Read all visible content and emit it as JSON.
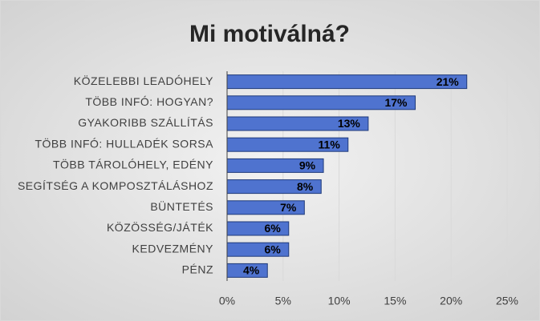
{
  "chart_data": {
    "type": "hbar",
    "title": "Mi motiválná?",
    "categories": [
      "KÖZELEBBI LEADÓHELY",
      "TÖBB INFÓ: HOGYAN?",
      "GYAKORIBB SZÁLLÍTÁS",
      "TÖBB INFÓ: HULLADÉK SORSA",
      "TÖBB TÁROLÓHELY, EDÉNY",
      "SEGÍTSÉG A KOMPOSZTÁLÁSHOZ",
      "BÜNTETÉS",
      "KÖZÖSSÉG/JÁTÉK",
      "KEDVEZMÉNY",
      "PÉNZ"
    ],
    "values": [
      21.4,
      16.8,
      12.6,
      10.8,
      8.6,
      8.4,
      6.9,
      5.5,
      5.5,
      3.6
    ],
    "value_labels": [
      "21%",
      "17%",
      "13%",
      "11%",
      "9%",
      "8%",
      "7%",
      "6%",
      "6%",
      "4%"
    ],
    "color": "#4f73cf",
    "xlim": [
      0,
      25
    ],
    "xticks": [
      {
        "value": 0,
        "label": "0%"
      },
      {
        "value": 5,
        "label": "5%"
      },
      {
        "value": 10,
        "label": "10%"
      },
      {
        "value": 15,
        "label": "15%"
      },
      {
        "value": 20,
        "label": "20%"
      },
      {
        "value": 25,
        "label": "25%"
      }
    ],
    "grid": true
  }
}
